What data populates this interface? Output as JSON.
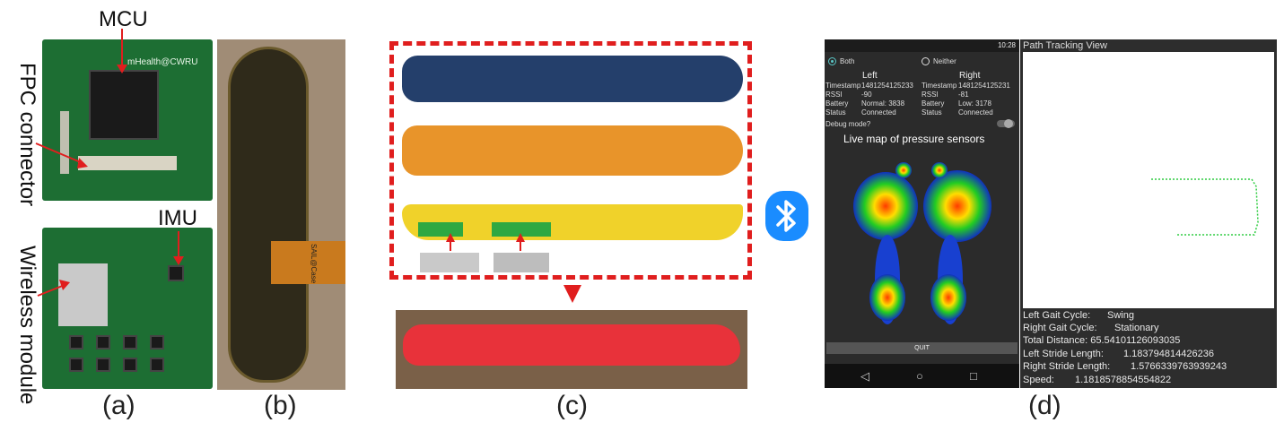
{
  "labels": {
    "mcu": "MCU",
    "fpc": "FPC connector",
    "imu": "IMU",
    "wireless": "Wireless module",
    "pcb_text": "mHealth@CWRU",
    "fpc_text": "SAIL@Case"
  },
  "panels": [
    "(a)",
    "(b)",
    "(c)",
    "(d)"
  ],
  "icons": {
    "bluetooth": "bluetooth-icon",
    "back": "◁",
    "home": "○",
    "recent": "□"
  },
  "phone": {
    "status_time": "10:28",
    "radio_both": "Both",
    "radio_neither": "Neither",
    "left_header": "Left",
    "right_header": "Right",
    "rows": [
      {
        "k": "Timestamp",
        "l": "1481254125233",
        "r": "1481254125231"
      },
      {
        "k": "RSSI",
        "l": "-90",
        "r": "-81"
      },
      {
        "k": "Battery",
        "l": "Normal: 3838",
        "r": "Low: 3178"
      },
      {
        "k": "Status",
        "l": "Connected",
        "r": "Connected"
      }
    ],
    "debug_label": "Debug mode?",
    "map_title": "Live map of pressure sensors",
    "quit_label": "QUIT"
  },
  "tracking": {
    "title": "Path Tracking View",
    "stats": [
      {
        "label": "Left Gait Cycle:",
        "value": "Swing"
      },
      {
        "label": "Right Gait Cycle:",
        "value": "Stationary"
      },
      {
        "label": "Total Distance:",
        "value": "65.54101126093035"
      },
      {
        "label": "Left Stride Length:",
        "value": "1.183794814426236"
      },
      {
        "label": "Right Stride Length:",
        "value": "1.5766339763939243"
      },
      {
        "label": "Speed:",
        "value": "1.1818578854554822"
      }
    ]
  },
  "colors": {
    "accent_red": "#e01e1e",
    "bluetooth_blue": "#1a8cff",
    "insole_red": "#e8323a",
    "path_green": "#2ecc40"
  }
}
